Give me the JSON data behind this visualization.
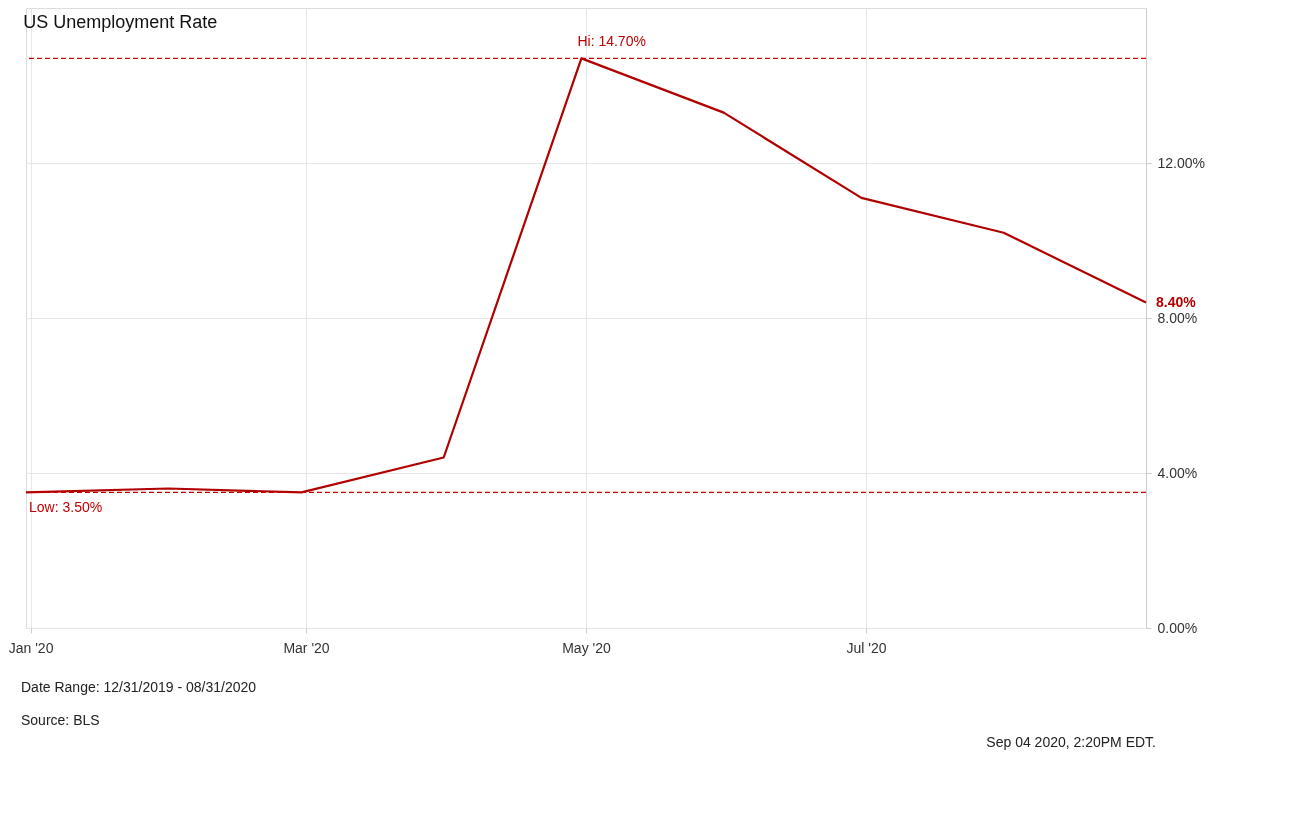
{
  "chart_data": {
    "type": "line",
    "title": "US Unemployment Rate",
    "x": [
      "2019-12-31",
      "2020-01-31",
      "2020-02-29",
      "2020-03-31",
      "2020-04-30",
      "2020-05-31",
      "2020-06-30",
      "2020-07-31",
      "2020-08-31"
    ],
    "series": [
      {
        "color": "#b00000",
        "values": [
          3.5,
          3.6,
          3.5,
          4.4,
          14.7,
          13.3,
          11.1,
          10.2,
          8.4
        ],
        "value_labels": [
          null,
          null,
          null,
          null,
          null,
          null,
          null,
          null,
          "8.40%"
        ]
      }
    ],
    "xlim": [
      "2019-12-31",
      "2020-08-31"
    ],
    "xticks": [
      {
        "value": "2020-01-01",
        "label": "Jan '20"
      },
      {
        "value": "2020-03-01",
        "label": "Mar '20"
      },
      {
        "value": "2020-05-01",
        "label": "May '20"
      },
      {
        "value": "2020-07-01",
        "label": "Jul '20"
      }
    ],
    "ylim": [
      0,
      16
    ],
    "yticks": [
      {
        "value": 0,
        "label": "0.00%"
      },
      {
        "value": 4,
        "label": "4.00%"
      },
      {
        "value": 8,
        "label": "8.00%"
      },
      {
        "value": 12,
        "label": "12.00%"
      }
    ],
    "ref_lines": [
      {
        "axis": "y",
        "value": 14.7,
        "color": "#c00000",
        "line_style": "dashed"
      },
      {
        "axis": "y",
        "value": 3.5,
        "color": "#c00000",
        "line_style": "dashed"
      }
    ],
    "annotations": [
      {
        "text": "Hi: 14.70%",
        "x": "2020-04-30",
        "y": 14.7
      },
      {
        "text": "Low: 3.50%",
        "x": "2019-12-31",
        "y": 3.5
      },
      "Date Range: 12/31/2019 - 08/31/2020",
      "Source: BLS",
      "Sep 04 2020, 2:20PM EDT."
    ],
    "grid": true,
    "marker": "none",
    "line_style": "solid"
  }
}
